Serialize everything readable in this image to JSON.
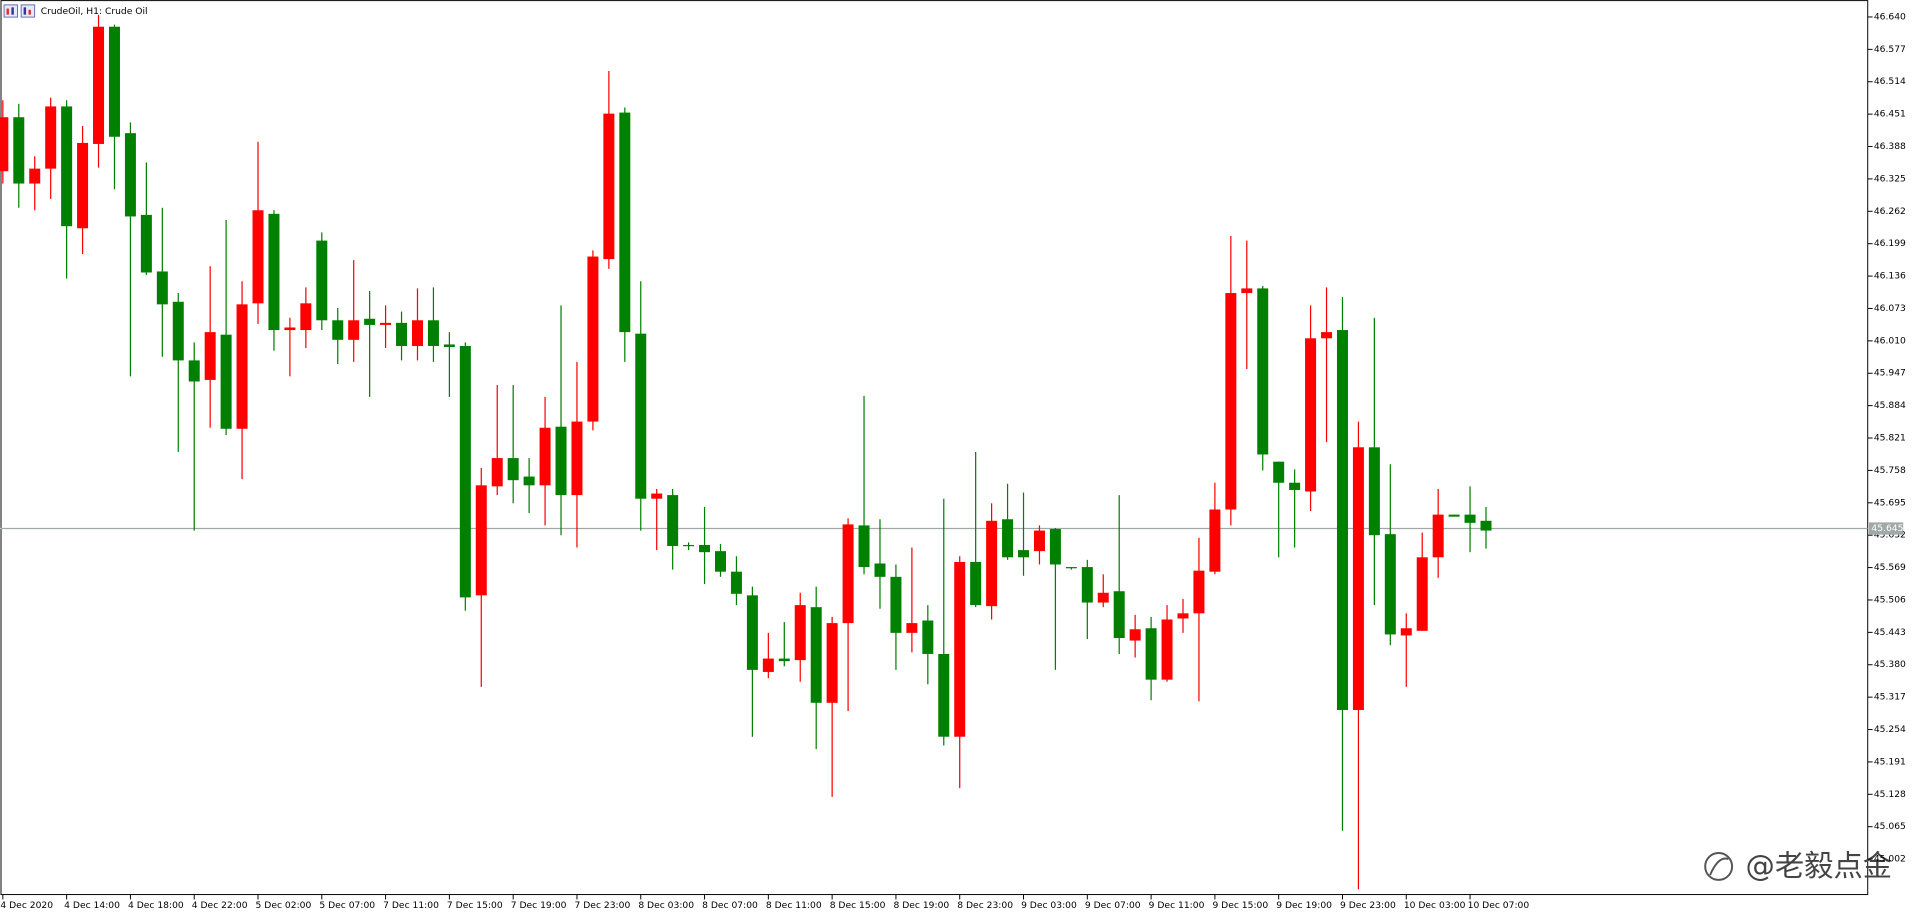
{
  "chart_data": {
    "type": "candlestick",
    "title": "CrudeOil, H1: Crude Oil",
    "watermark": "@老毅点金",
    "categories": [
      "4 Dec 2020",
      null,
      null,
      null,
      "4 Dec 14:00",
      null,
      null,
      null,
      "4 Dec 18:00",
      null,
      null,
      null,
      "4 Dec 22:00",
      null,
      null,
      null,
      "5 Dec 02:00",
      null,
      null,
      null,
      "5 Dec 07:00",
      null,
      null,
      null,
      "7 Dec 11:00",
      null,
      null,
      null,
      "7 Dec 15:00",
      null,
      null,
      null,
      "7 Dec 19:00",
      null,
      null,
      null,
      "7 Dec 23:00",
      null,
      null,
      null,
      "8 Dec 03:00",
      null,
      null,
      null,
      "8 Dec 07:00",
      null,
      null,
      null,
      "8 Dec 11:00",
      null,
      null,
      null,
      "8 Dec 15:00",
      null,
      null,
      null,
      "8 Dec 19:00",
      null,
      null,
      null,
      "8 Dec 23:00",
      null,
      null,
      null,
      "9 Dec 03:00",
      null,
      null,
      null,
      "9 Dec 07:00",
      null,
      null,
      null,
      "9 Dec 11:00",
      null,
      null,
      null,
      "9 Dec 15:00",
      null,
      null,
      null,
      "9 Dec 19:00",
      null,
      null,
      null,
      "9 Dec 23:00",
      null,
      null,
      null,
      "10 Dec 03:00",
      null,
      null,
      null,
      "10 Dec 07:00",
      null
    ],
    "open": [
      46.34,
      46.445,
      46.316,
      46.345,
      46.466,
      46.229,
      46.393,
      46.621,
      46.414,
      46.255,
      46.145,
      46.086,
      45.972,
      45.934,
      46.022,
      45.839,
      46.083,
      46.257,
      46.031,
      46.031,
      46.205,
      46.05,
      46.012,
      46.053,
      46.041,
      46.045,
      46.0,
      46.05,
      46.003,
      46.0,
      45.515,
      45.727,
      45.782,
      45.746,
      45.729,
      45.843,
      45.71,
      45.853,
      46.169,
      46.454,
      46.024,
      45.703,
      45.71,
      45.613,
      45.613,
      45.601,
      45.561,
      45.515,
      45.366,
      45.392,
      45.389,
      45.492,
      45.306,
      45.461,
      45.651,
      45.577,
      45.551,
      45.442,
      45.466,
      45.401,
      45.24,
      45.58,
      45.494,
      45.663,
      45.603,
      45.601,
      45.644,
      45.57,
      45.57,
      45.501,
      45.523,
      45.427,
      45.451,
      45.351,
      45.47,
      45.48,
      45.561,
      45.682,
      46.103,
      46.112,
      45.775,
      45.734,
      45.717,
      46.015,
      46.031,
      45.292,
      45.803,
      45.634,
      45.437,
      45.446,
      45.589,
      45.672,
      45.672,
      45.66
    ],
    "high": [
      46.478,
      46.471,
      46.369,
      46.483,
      46.478,
      46.428,
      46.644,
      46.625,
      46.435,
      46.357,
      46.269,
      46.103,
      46.007,
      46.155,
      46.245,
      46.126,
      46.397,
      46.264,
      46.055,
      46.114,
      46.221,
      46.074,
      46.167,
      46.107,
      46.079,
      46.067,
      46.112,
      46.114,
      46.027,
      46.007,
      45.763,
      45.924,
      45.924,
      45.782,
      45.901,
      46.079,
      45.969,
      46.186,
      46.535,
      46.464,
      46.126,
      45.722,
      45.722,
      45.618,
      45.687,
      45.615,
      45.591,
      45.532,
      45.442,
      45.463,
      45.52,
      45.532,
      45.473,
      45.665,
      45.903,
      45.663,
      45.575,
      45.608,
      45.496,
      45.703,
      45.591,
      45.794,
      45.694,
      45.732,
      45.715,
      45.651,
      45.646,
      45.57,
      45.584,
      45.556,
      45.71,
      45.477,
      45.473,
      45.496,
      45.508,
      45.627,
      45.734,
      46.214,
      46.205,
      46.117,
      45.775,
      45.76,
      46.079,
      46.114,
      46.095,
      45.853,
      46.055,
      45.77,
      45.48,
      45.637,
      45.722,
      45.672,
      45.727,
      45.687
    ],
    "low": [
      46.316,
      46.269,
      46.264,
      46.286,
      46.131,
      46.179,
      46.347,
      46.305,
      45.941,
      46.138,
      45.979,
      45.794,
      45.641,
      45.841,
      45.827,
      45.741,
      46.043,
      45.991,
      45.941,
      45.996,
      46.031,
      45.965,
      45.969,
      45.901,
      45.996,
      45.972,
      45.972,
      45.969,
      45.901,
      45.485,
      45.337,
      45.71,
      45.694,
      45.675,
      45.651,
      45.632,
      45.608,
      45.836,
      46.15,
      45.969,
      45.641,
      45.603,
      45.565,
      45.603,
      45.537,
      45.551,
      45.496,
      45.24,
      45.354,
      45.377,
      45.347,
      45.216,
      45.123,
      45.29,
      45.556,
      45.489,
      45.37,
      45.404,
      45.342,
      45.223,
      45.14,
      45.492,
      45.468,
      45.584,
      45.553,
      45.575,
      45.37,
      45.565,
      45.43,
      45.492,
      45.401,
      45.394,
      45.311,
      45.347,
      45.442,
      45.309,
      45.556,
      45.651,
      45.955,
      45.758,
      45.589,
      45.608,
      45.679,
      45.813,
      45.057,
      44.943,
      45.496,
      45.418,
      45.337,
      45.446,
      45.549,
      45.668,
      45.599,
      45.606
    ],
    "close": [
      46.445,
      46.316,
      46.345,
      46.466,
      46.233,
      46.395,
      46.621,
      46.407,
      46.252,
      46.143,
      46.081,
      45.972,
      45.931,
      46.027,
      45.839,
      46.081,
      46.264,
      46.031,
      46.036,
      46.083,
      46.05,
      46.012,
      46.05,
      46.041,
      46.045,
      46.0,
      46.05,
      46.0,
      45.998,
      45.511,
      45.729,
      45.782,
      45.739,
      45.729,
      45.841,
      45.71,
      45.853,
      46.174,
      46.452,
      46.027,
      45.703,
      45.713,
      45.611,
      45.611,
      45.599,
      45.561,
      45.518,
      45.37,
      45.392,
      45.387,
      45.496,
      45.306,
      45.461,
      45.653,
      45.57,
      45.551,
      45.442,
      45.461,
      45.401,
      45.24,
      45.58,
      45.496,
      45.66,
      45.589,
      45.589,
      45.641,
      45.575,
      45.568,
      45.501,
      45.52,
      45.432,
      45.449,
      45.351,
      45.468,
      45.48,
      45.563,
      45.682,
      46.103,
      46.112,
      45.789,
      45.734,
      45.72,
      46.015,
      46.027,
      45.292,
      45.803,
      45.632,
      45.439,
      45.451,
      45.589,
      45.672,
      45.668,
      45.656,
      45.641
    ],
    "up_color": "#ff0000",
    "down_color": "#008000",
    "current_price": 45.645,
    "ylim": [
      44.933,
      46.673
    ],
    "yticks": [
      {
        "value": 46.64,
        "label": "46.640"
      },
      46.577,
      46.514,
      46.451,
      46.388,
      46.325,
      46.262,
      46.199,
      46.136,
      46.073,
      {
        "value": 46.01,
        "label": "46.010"
      },
      45.947,
      45.884,
      45.821,
      45.758,
      45.695,
      45.632,
      45.569,
      45.506,
      45.443,
      {
        "value": 45.38,
        "label": "45.380"
      },
      45.317,
      45.254,
      45.191,
      45.128,
      45.065,
      {
        "value": 45.002,
        "label": "45.002"
      }
    ],
    "grid": false
  }
}
